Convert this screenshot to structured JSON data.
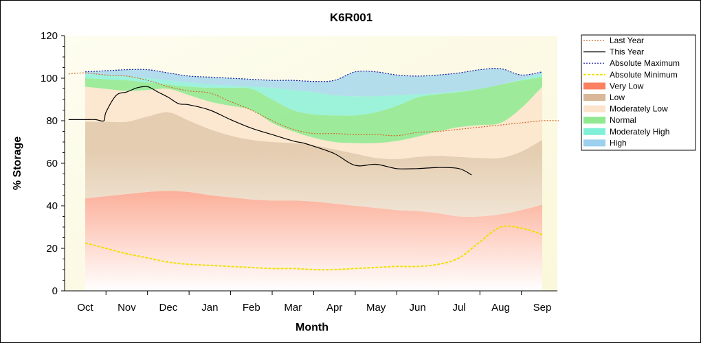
{
  "chart_data": {
    "type": "area",
    "title": "K6R001",
    "xlabel": "Month",
    "ylabel": "% Storage",
    "ylim": [
      0,
      120
    ],
    "yticks": [
      0,
      20,
      40,
      60,
      80,
      100,
      120
    ],
    "categories": [
      "Oct",
      "Nov",
      "Dec",
      "Jan",
      "Feb",
      "Mar",
      "Apr",
      "May",
      "Jun",
      "Jul",
      "Aug",
      "Sep"
    ],
    "x": [
      0,
      0.5,
      1,
      1.5,
      2,
      2.5,
      3,
      3.5,
      4,
      4.5,
      5,
      5.5,
      6,
      6.5,
      7,
      7.5,
      8,
      8.5,
      9,
      9.5,
      10,
      10.5,
      11
    ],
    "grid": false,
    "legend_position": "right",
    "bands": [
      {
        "name": "Very Low",
        "color": "#fa8060",
        "lower": [
          0,
          0,
          0,
          0,
          0,
          0,
          0,
          0,
          0,
          0,
          0,
          0,
          0,
          0,
          0,
          0,
          0,
          0,
          0,
          0,
          0,
          0,
          0
        ],
        "upper": [
          43.5,
          44.5,
          45.5,
          46.5,
          47,
          46.5,
          45,
          44,
          43,
          42.5,
          42.5,
          42,
          41,
          40,
          39,
          38,
          37.5,
          36.5,
          35,
          35,
          36,
          38,
          40.5
        ]
      },
      {
        "name": "Low",
        "color": "#e0c6a8",
        "lower": [
          43.5,
          44.5,
          45.5,
          46.5,
          47,
          46.5,
          45,
          44,
          43,
          42.5,
          42.5,
          42,
          41,
          40,
          39,
          38,
          37.5,
          36.5,
          35,
          35,
          36,
          38,
          40.5
        ],
        "upper": [
          79.5,
          79.5,
          79.5,
          82,
          84,
          80,
          76,
          73,
          71,
          70,
          69.5,
          68.5,
          66.5,
          64.5,
          62.5,
          62,
          63,
          63.5,
          63,
          62.5,
          62.5,
          65.5,
          71
        ]
      },
      {
        "name": "Moderately Low",
        "color": "#fce4cc",
        "lower": [
          79.5,
          79.5,
          79.5,
          82,
          84,
          80,
          76,
          73,
          71,
          70,
          69.5,
          68.5,
          66.5,
          64.5,
          62.5,
          62,
          63,
          63.5,
          63,
          62.5,
          62.5,
          65.5,
          71
        ],
        "upper": [
          96,
          95,
          94,
          94.5,
          95,
          92,
          89,
          87,
          85,
          79,
          75,
          72,
          70,
          69.5,
          69.5,
          70.5,
          72.5,
          75,
          77,
          78,
          79,
          86,
          96
        ]
      },
      {
        "name": "Normal",
        "color": "#90e890",
        "lower": [
          96,
          95,
          94,
          94.5,
          95,
          92,
          89,
          87,
          85,
          79,
          75,
          72,
          70,
          69.5,
          69.5,
          70.5,
          72.5,
          75,
          77,
          78,
          79,
          86,
          96
        ],
        "upper": [
          100,
          99.5,
          99,
          98,
          97,
          96,
          95.5,
          95.5,
          95,
          90,
          85,
          83,
          82.5,
          82.5,
          84,
          87,
          91,
          92.5,
          93.5,
          95,
          97,
          99,
          100.5
        ]
      },
      {
        "name": "Moderately High",
        "color": "#90f0d8",
        "lower": [
          100,
          99.5,
          99,
          98,
          97,
          96,
          95.5,
          95.5,
          95,
          90,
          85,
          83,
          82.5,
          82.5,
          84,
          87,
          91,
          92.5,
          93.5,
          95,
          97,
          99,
          100.5
        ],
        "upper": [
          102,
          101.5,
          101,
          100,
          99,
          98,
          97,
          96.5,
          96,
          95.5,
          94.5,
          93.5,
          92,
          91.5,
          91.5,
          92,
          92.5,
          93,
          94,
          95,
          97,
          99.5,
          102
        ]
      },
      {
        "name": "High",
        "color": "#a8d8ec",
        "lower": [
          102,
          101.5,
          101,
          100,
          99,
          98,
          97,
          96.5,
          96,
          95.5,
          94.5,
          93.5,
          92,
          91.5,
          91.5,
          92,
          92.5,
          93,
          94,
          95,
          97,
          99.5,
          102
        ],
        "upper": [
          103,
          103.5,
          104,
          104,
          102.5,
          101,
          100.5,
          100,
          99.5,
          99,
          99,
          98.5,
          99,
          103,
          103,
          101.5,
          101,
          101.5,
          102.5,
          104,
          104.5,
          101.5,
          103
        ]
      }
    ],
    "series": [
      {
        "name": "Last Year",
        "color": "#d06828",
        "style": "dotted",
        "x": [
          -0.4,
          0,
          0.5,
          1,
          1.5,
          2,
          2.5,
          3,
          3.5,
          4,
          4.5,
          5,
          5.5,
          6,
          6.5,
          7,
          7.5,
          8,
          8.5,
          9,
          9.5,
          10,
          10.5,
          11,
          11.4
        ],
        "y": [
          102,
          102.5,
          101.5,
          101,
          99,
          96,
          94,
          93,
          89,
          85,
          80,
          76,
          74,
          74,
          73.5,
          73.5,
          73,
          74.5,
          75,
          76,
          77,
          78,
          79,
          80,
          80
        ]
      },
      {
        "name": "This Year",
        "color": "#000000",
        "style": "solid",
        "x": [
          -0.4,
          0,
          0.25,
          0.45,
          0.5,
          0.75,
          1,
          1.25,
          1.5,
          1.75,
          2,
          2.25,
          2.5,
          3,
          3.5,
          4,
          4.5,
          5,
          5.25,
          5.5,
          6,
          6.5,
          7,
          7.5,
          8,
          8.5,
          9,
          9.3
        ],
        "y": [
          80.5,
          80.5,
          80.5,
          80,
          84,
          92,
          93.5,
          95.5,
          96,
          93.5,
          91,
          88,
          87.5,
          85,
          80.5,
          76.5,
          73.5,
          70.5,
          69.5,
          68,
          64.5,
          59,
          59.5,
          57.5,
          57.5,
          58,
          57.5,
          54.5
        ]
      },
      {
        "name": "Absolute Maximum",
        "color": "#1a1aa0",
        "style": "dotted",
        "x": [
          0,
          0.5,
          1,
          1.5,
          2,
          2.5,
          3,
          3.5,
          4,
          4.5,
          5,
          5.5,
          6,
          6.5,
          7,
          7.5,
          8,
          8.5,
          9,
          9.5,
          10,
          10.5,
          11
        ],
        "y": [
          103,
          103.5,
          104,
          104,
          102.5,
          101,
          100.5,
          100,
          99.5,
          99,
          99,
          98.5,
          99,
          103,
          103,
          101.5,
          101,
          101.5,
          102.5,
          104,
          104.5,
          101.5,
          103
        ]
      },
      {
        "name": "Absolute Minimum",
        "color": "#f0e000",
        "style": "dashed",
        "x": [
          0,
          0.5,
          1,
          1.5,
          2,
          2.5,
          3,
          3.5,
          4,
          4.5,
          5,
          5.5,
          6,
          6.5,
          7,
          7.5,
          8,
          8.5,
          9,
          9.5,
          10,
          10.5,
          11
        ],
        "y": [
          22.5,
          20,
          17.5,
          15.5,
          13.5,
          12.5,
          12,
          11.5,
          11,
          10.5,
          10.5,
          10,
          10,
          10.5,
          11,
          11.5,
          11.5,
          12.5,
          15.5,
          23,
          30,
          29.5,
          26.5
        ]
      }
    ],
    "legend": [
      {
        "label": "Last Year",
        "kind": "line",
        "color": "#d06828",
        "dash": "2,2"
      },
      {
        "label": "This Year",
        "kind": "line",
        "color": "#000000",
        "dash": ""
      },
      {
        "label": "Absolute Maximum",
        "kind": "line",
        "color": "#1a1aa0",
        "dash": "2,2"
      },
      {
        "label": "Absolute Minimum",
        "kind": "line",
        "color": "#f0e000",
        "dash": "4,2"
      },
      {
        "label": "Very Low",
        "kind": "band",
        "color": "#fa8060"
      },
      {
        "label": "Low",
        "kind": "band",
        "color": "#d8b898"
      },
      {
        "label": "Moderately Low",
        "kind": "band",
        "color": "#fce4cc"
      },
      {
        "label": "Normal",
        "kind": "band",
        "color": "#90e890"
      },
      {
        "label": "Moderately High",
        "kind": "band",
        "color": "#80f0d8"
      },
      {
        "label": "High",
        "kind": "band",
        "color": "#9cd0ee"
      }
    ]
  }
}
